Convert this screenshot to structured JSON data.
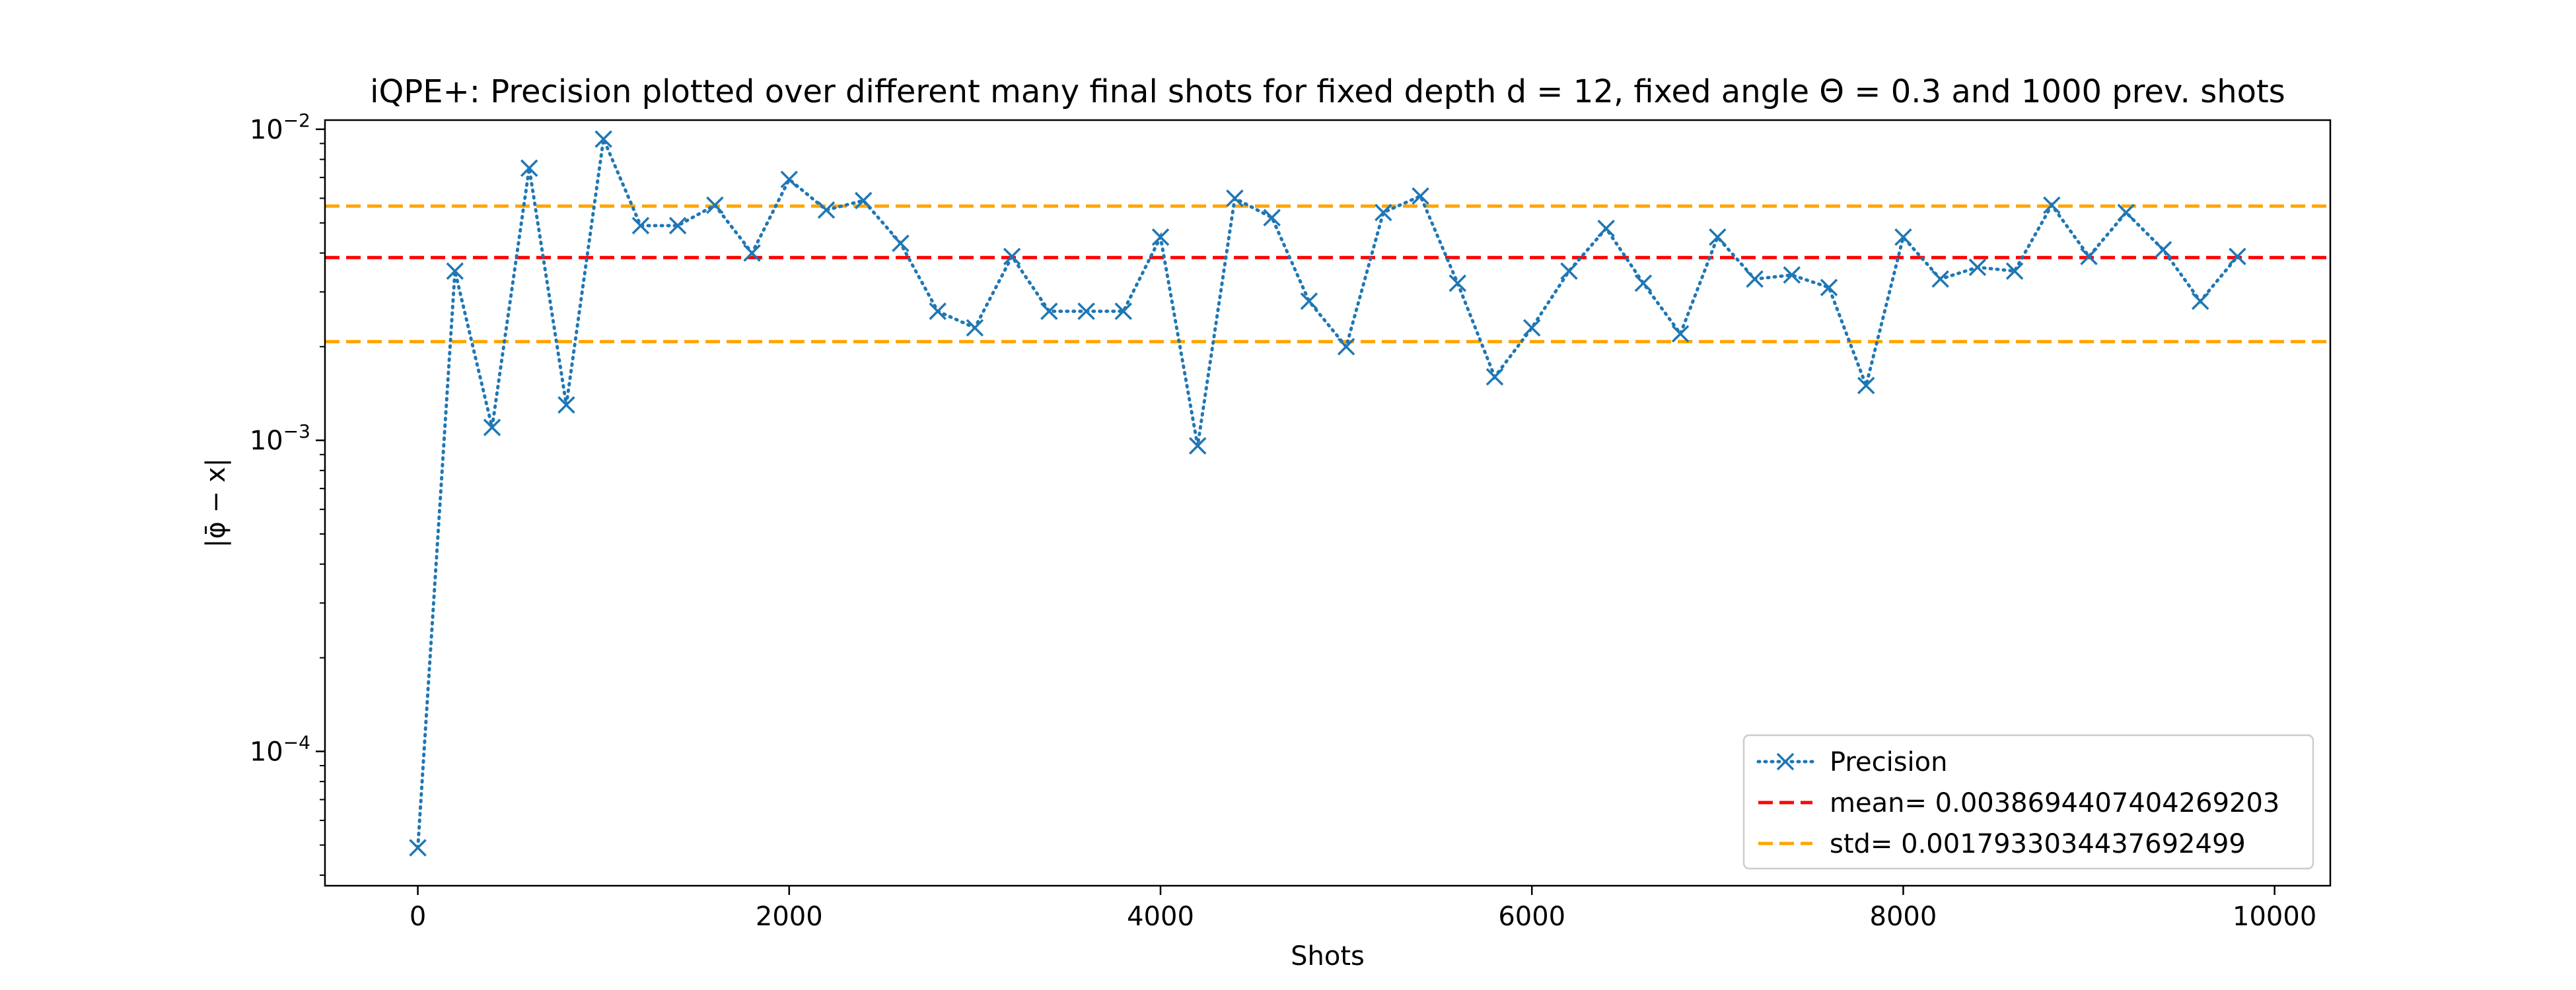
{
  "chart_data": {
    "type": "line",
    "title": "iQPE+: Precision plotted over different many final shots for fixed depth d = 12, fixed angle Θ = 0.3 and 1000 prev. shots",
    "xlabel": "Shots",
    "ylabel": "|φ̄ − x|",
    "yscale": "log",
    "xlim": [
      -500,
      10300
    ],
    "ylim": [
      3.7e-05,
      0.0107
    ],
    "x_ticks": [
      0,
      2000,
      4000,
      6000,
      8000,
      10000
    ],
    "x_tick_labels": [
      "0",
      "2000",
      "4000",
      "6000",
      "8000",
      "10000"
    ],
    "y_ticks": [
      0.0001,
      0.001,
      0.01
    ],
    "y_tick_labels": [
      {
        "base": "10",
        "exp": "−4"
      },
      {
        "base": "10",
        "exp": "−3"
      },
      {
        "base": "10",
        "exp": "−2"
      }
    ],
    "grid": false,
    "legend_position": "lower-right",
    "series": [
      {
        "name": "Precision",
        "style": "dotted",
        "marker": "x",
        "color": "#1f77b4",
        "x": [
          0,
          200,
          400,
          600,
          800,
          1000,
          1200,
          1400,
          1600,
          1800,
          2000,
          2200,
          2400,
          2600,
          2800,
          3000,
          3200,
          3400,
          3600,
          3800,
          4000,
          4200,
          4400,
          4600,
          4800,
          5000,
          5200,
          5400,
          5600,
          5800,
          6000,
          6200,
          6400,
          6600,
          6800,
          7000,
          7200,
          7400,
          7600,
          7800,
          8000,
          8200,
          8400,
          8600,
          8800,
          9000,
          9200,
          9400,
          9600,
          9800
        ],
        "values": [
          4.9e-05,
          0.0035,
          0.0011,
          0.0075,
          0.0013,
          0.0093,
          0.0049,
          0.0049,
          0.0057,
          0.004,
          0.0069,
          0.0055,
          0.0059,
          0.0043,
          0.0026,
          0.0023,
          0.0039,
          0.0026,
          0.0026,
          0.0026,
          0.0045,
          0.00096,
          0.006,
          0.0052,
          0.0028,
          0.002,
          0.0054,
          0.0061,
          0.0032,
          0.0016,
          0.0023,
          0.0035,
          0.0048,
          0.0032,
          0.0022,
          0.0045,
          0.0033,
          0.0034,
          0.0031,
          0.0015,
          0.0045,
          0.0033,
          0.0036,
          0.0035,
          0.0057,
          0.0039,
          0.0054,
          0.0041,
          0.0028,
          0.0039
        ]
      },
      {
        "name": "mean= 0.0038694407404269203",
        "style": "dashed",
        "color": "#ff0000",
        "y": 0.0038694407404269203
      },
      {
        "name": "std= 0.0017933034437692499",
        "style": "dashed",
        "color": "#ffa500",
        "y_lines": [
          0.0020761372966576703,
          0.00566274408419617
        ]
      }
    ]
  }
}
